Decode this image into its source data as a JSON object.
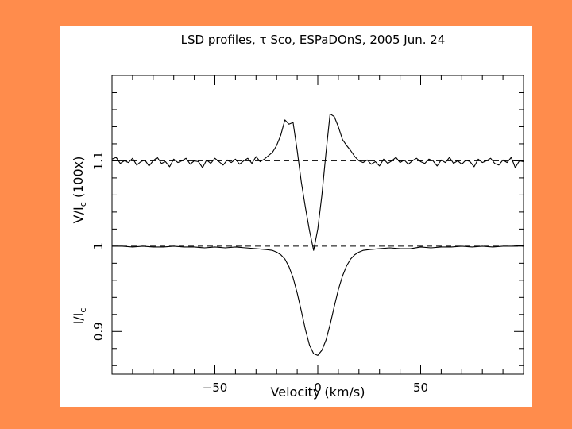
{
  "page": {
    "background": "#FF8C4C",
    "panel_background": "#FFFFFF"
  },
  "chart_data": {
    "type": "line",
    "title": "LSD profiles, τ Sco, ESPaDOnS, 2005 Jun. 24",
    "xlabel": "Velocity (km/s)",
    "ylabel_upper": "V/I_c (100x)",
    "ylabel_lower": "I/I_c",
    "xlim": [
      -100,
      100
    ],
    "ylim": [
      0.85,
      1.2
    ],
    "x_ticks": [
      -50,
      0,
      50
    ],
    "y_ticks": [
      0.9,
      1,
      1.1
    ],
    "x_tick_labels": [
      "−50",
      "0",
      "50"
    ],
    "y_tick_labels": [
      "0.9",
      "1",
      "1.1"
    ],
    "reference_lines": [
      1.0,
      1.1
    ],
    "grid": false,
    "line_color": "#000000",
    "series": [
      {
        "x": [
          -100,
          -98,
          -96,
          -94,
          -92,
          -90,
          -88,
          -86,
          -84,
          -82,
          -80,
          -78,
          -76,
          -74,
          -72,
          -70,
          -68,
          -66,
          -64,
          -62,
          -60,
          -58,
          -56,
          -54,
          -52,
          -50,
          -48,
          -46,
          -44,
          -42,
          -40,
          -38,
          -36,
          -34,
          -32,
          -30,
          -28,
          -26,
          -24,
          -22,
          -20,
          -18,
          -16,
          -14,
          -12,
          -10,
          -8,
          -6,
          -4,
          -2,
          0,
          2,
          4,
          6,
          8,
          10,
          12,
          14,
          16,
          18,
          20,
          22,
          24,
          26,
          28,
          30,
          32,
          34,
          36,
          38,
          40,
          42,
          44,
          46,
          48,
          50,
          52,
          54,
          56,
          58,
          60,
          62,
          64,
          66,
          68,
          70,
          72,
          74,
          76,
          78,
          80,
          82,
          84,
          86,
          88,
          90,
          92,
          94,
          96,
          98,
          100
        ],
        "values": [
          1.102,
          1.104,
          1.097,
          1.1,
          1.098,
          1.103,
          1.095,
          1.099,
          1.101,
          1.094,
          1.1,
          1.104,
          1.097,
          1.099,
          1.093,
          1.102,
          1.098,
          1.1,
          1.103,
          1.096,
          1.1,
          1.099,
          1.092,
          1.101,
          1.097,
          1.103,
          1.099,
          1.095,
          1.101,
          1.098,
          1.102,
          1.096,
          1.1,
          1.103,
          1.097,
          1.105,
          1.099,
          1.102,
          1.106,
          1.11,
          1.118,
          1.13,
          1.148,
          1.143,
          1.145,
          1.112,
          1.075,
          1.045,
          1.018,
          0.995,
          1.02,
          1.06,
          1.11,
          1.155,
          1.152,
          1.14,
          1.125,
          1.118,
          1.112,
          1.105,
          1.1,
          1.098,
          1.101,
          1.096,
          1.099,
          1.094,
          1.102,
          1.097,
          1.1,
          1.104,
          1.098,
          1.101,
          1.096,
          1.1,
          1.103,
          1.099,
          1.097,
          1.102,
          1.1,
          1.094,
          1.101,
          1.098,
          1.104,
          1.097,
          1.1,
          1.096,
          1.101,
          1.099,
          1.093,
          1.102,
          1.098,
          1.1,
          1.103,
          1.097,
          1.095,
          1.101,
          1.098,
          1.104,
          1.092,
          1.1,
          1.099
        ]
      },
      {
        "x": [
          -100,
          -95,
          -90,
          -85,
          -80,
          -75,
          -70,
          -65,
          -60,
          -55,
          -50,
          -45,
          -40,
          -35,
          -30,
          -25,
          -22,
          -20,
          -18,
          -16,
          -14,
          -12,
          -10,
          -8,
          -6,
          -4,
          -2,
          0,
          2,
          4,
          6,
          8,
          10,
          12,
          14,
          16,
          18,
          20,
          22,
          25,
          30,
          35,
          40,
          45,
          50,
          55,
          60,
          65,
          70,
          75,
          80,
          85,
          90,
          95,
          100
        ],
        "values": [
          1.0,
          1.0,
          0.999,
          1.0,
          0.999,
          0.999,
          1.0,
          0.999,
          0.999,
          0.998,
          0.999,
          0.998,
          0.999,
          0.998,
          0.997,
          0.996,
          0.995,
          0.993,
          0.99,
          0.985,
          0.976,
          0.963,
          0.945,
          0.924,
          0.902,
          0.884,
          0.874,
          0.872,
          0.878,
          0.89,
          0.908,
          0.929,
          0.949,
          0.965,
          0.977,
          0.985,
          0.99,
          0.993,
          0.995,
          0.996,
          0.997,
          0.998,
          0.997,
          0.997,
          0.999,
          0.998,
          0.999,
          0.999,
          1.0,
          0.999,
          1.0,
          0.999,
          1.0,
          1.0,
          1.001
        ]
      }
    ]
  }
}
